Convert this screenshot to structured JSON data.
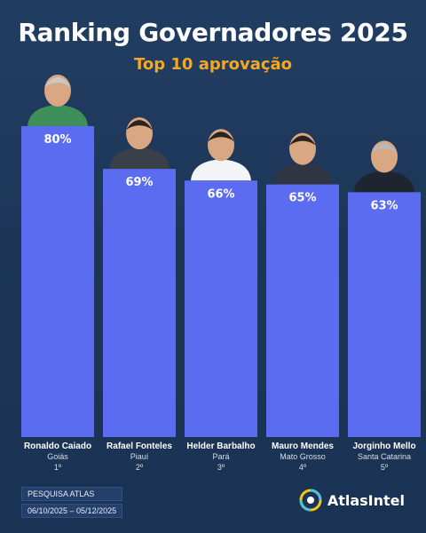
{
  "title": "Ranking Governadores 2025",
  "subtitle": "Top 10 aprovação",
  "chart_data": {
    "type": "bar",
    "categories": [
      "Ronaldo Caiado",
      "Rafael Fonteles",
      "Helder Barbalho",
      "Mauro Mendes",
      "Jorginho Mello"
    ],
    "values": [
      80,
      69,
      66,
      65,
      63
    ],
    "value_labels": [
      "80%",
      "69%",
      "66%",
      "65%",
      "63%"
    ],
    "states": [
      "Goiás",
      "Piauí",
      "Pará",
      "Mato Grosso",
      "Santa Catarina"
    ],
    "ranks": [
      "1º",
      "2º",
      "3º",
      "4º",
      "5º"
    ],
    "ylim": [
      0,
      100
    ],
    "grid": false,
    "bar_color": "#5c6cf0"
  },
  "footer": {
    "survey_label": "PESQUISA ATLAS",
    "period": "06/10/2025 – 05/12/2025",
    "brand": "AtlasIntel"
  }
}
